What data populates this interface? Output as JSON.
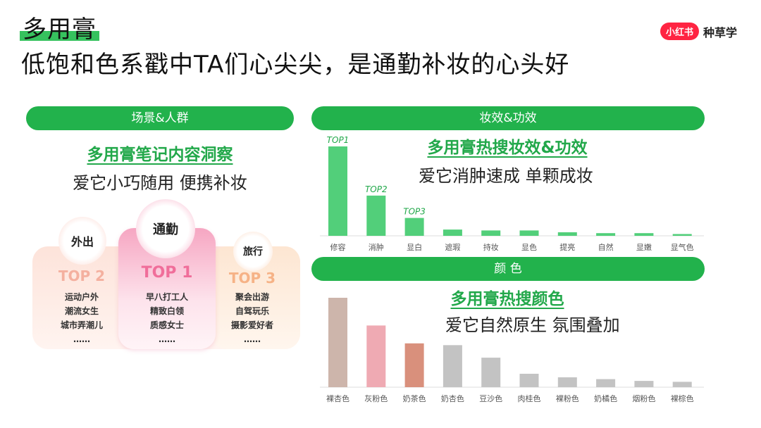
{
  "header": {
    "title_top": "多用膏",
    "title_main": "低饱和色系戳中TA们心尖尖，是通勤补妆的心头好",
    "brand_logo": "小红书",
    "brand_text": "种草学"
  },
  "colors": {
    "accent": "#22b24c",
    "title_green": "#22a84a",
    "brand_red": "#ff2442"
  },
  "left_section": {
    "pill": "场景&人群",
    "heading": "多用膏笔记内容洞察",
    "subheading": "爱它小巧随用 便携补妆",
    "cards": [
      {
        "circle": "外出",
        "rank": "TOP 2",
        "items": [
          "运动户外",
          "潮流女生",
          "城市弄潮儿",
          "……"
        ]
      },
      {
        "circle": "通勤",
        "rank": "TOP 1",
        "items": [
          "早八打工人",
          "精致白领",
          "质感女士",
          "……"
        ]
      },
      {
        "circle": "旅行",
        "rank": "TOP 3",
        "items": [
          "聚会出游",
          "自驾玩乐",
          "摄影爱好者",
          "……"
        ]
      }
    ]
  },
  "right_top": {
    "pill": "妆效&功效",
    "heading": "多用膏热搜妆效&功效",
    "subheading": "爱它消肿速成 单颗成妆"
  },
  "right_bottom": {
    "pill": "颜 色",
    "heading": "多用膏热搜颜色",
    "subheading": "爱它自然原生 氛围叠加"
  },
  "chart_data": [
    {
      "type": "bar",
      "categories": [
        "修容",
        "消肿",
        "显白",
        "遮瑕",
        "持妆",
        "显色",
        "提亮",
        "自然",
        "显嫩",
        "显气色"
      ],
      "values": [
        100,
        45,
        20,
        7,
        6,
        6,
        4,
        3,
        3,
        2
      ],
      "annotations": [
        "TOP1",
        "TOP2",
        "TOP3"
      ],
      "bar_color": "#52cf7a",
      "ylim": [
        0,
        100
      ]
    },
    {
      "type": "bar",
      "categories": [
        "裸杏色",
        "灰粉色",
        "奶茶色",
        "奶杏色",
        "豆沙色",
        "肉桂色",
        "裸粉色",
        "奶橘色",
        "烟粉色",
        "裸棕色"
      ],
      "values": [
        100,
        69,
        49,
        47,
        33,
        15,
        11,
        9,
        7,
        6
      ],
      "colors": [
        "#cdb5ab",
        "#efaab3",
        "#d9907c",
        "#c3c3c3",
        "#c3c3c3",
        "#c3c3c3",
        "#c3c3c3",
        "#c3c3c3",
        "#c3c3c3",
        "#c3c3c3"
      ],
      "ylim": [
        0,
        100
      ]
    }
  ]
}
